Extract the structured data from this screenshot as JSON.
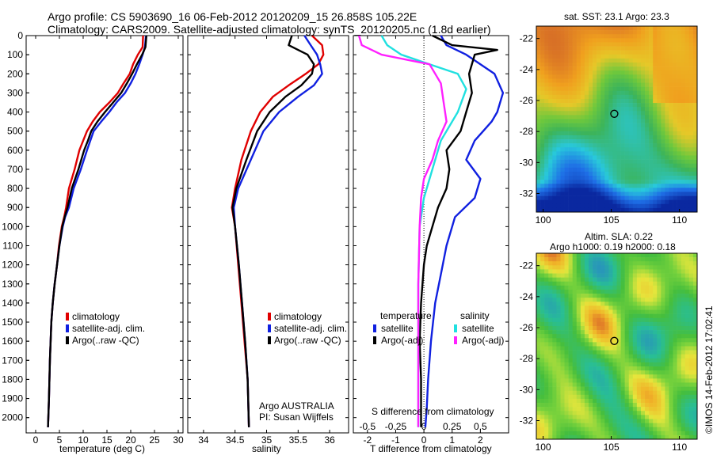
{
  "title": {
    "line1": "Argo profile: CS 5903690_16 06-Feb-2012 20120209_15 26.858S 105.22E",
    "line2": "Climatology: CARS2009. Satellite-adjusted climatology: synTS_20120205.nc (1.8d earlier)"
  },
  "colors": {
    "climatology": "#e00000",
    "satellite": "#1020e0",
    "argo": "#000000",
    "salinity_satellite": "#20e0e0",
    "salinity_argo": "#ff20ff"
  },
  "chart_data": [
    {
      "type": "line",
      "xlabel": "temperature (deg C)",
      "ylabel": "",
      "xlim": [
        -2,
        31
      ],
      "ylim": [
        2080,
        0
      ],
      "xticks": [
        "0",
        "5",
        "10",
        "15",
        "20",
        "25",
        "30"
      ],
      "yticks": [
        "0",
        "100",
        "200",
        "300",
        "400",
        "500",
        "600",
        "700",
        "800",
        "900",
        "1000",
        "1100",
        "1200",
        "1300",
        "1400",
        "1500",
        "1600",
        "1700",
        "1800",
        "1900",
        "2000"
      ],
      "legend": [
        "climatology",
        "satellite-adj. clim.",
        "Argo(..raw -QC)"
      ],
      "series": [
        {
          "name": "climatology",
          "x": [
            22.6,
            22.5,
            21.5,
            20.5,
            19.8,
            18.5,
            17.3,
            15.5,
            13.5,
            12.0,
            10.8,
            10.0,
            9.2,
            8.2,
            7.0,
            6.4,
            6.0,
            5.5,
            4.9,
            4.5,
            4.0,
            3.6,
            3.3,
            3.0,
            2.8,
            2.6
          ],
          "y": [
            0,
            60,
            100,
            150,
            200,
            250,
            300,
            350,
            400,
            450,
            500,
            550,
            600,
            700,
            800,
            900,
            950,
            1000,
            1100,
            1200,
            1300,
            1400,
            1500,
            1700,
            1900,
            2050
          ]
        },
        {
          "name": "satellite-adj. clim.",
          "x": [
            23.2,
            23.0,
            22.5,
            21.8,
            21.0,
            20.0,
            18.8,
            17.0,
            15.5,
            13.8,
            12.2,
            11.5,
            10.8,
            9.5,
            8.0,
            7.0,
            6.2,
            5.7,
            5.0,
            4.5,
            4.0,
            3.6,
            3.3,
            3.0,
            2.8,
            2.6
          ],
          "y": [
            0,
            60,
            100,
            150,
            200,
            250,
            300,
            350,
            400,
            450,
            500,
            550,
            600,
            700,
            800,
            900,
            950,
            1000,
            1100,
            1200,
            1300,
            1400,
            1500,
            1700,
            1900,
            2050
          ]
        },
        {
          "name": "Argo(..raw -QC)",
          "x": [
            23.3,
            23.1,
            22.4,
            21.3,
            20.3,
            19.2,
            18.0,
            16.3,
            14.6,
            13.0,
            11.7,
            11.0,
            10.2,
            9.0,
            7.6,
            6.7,
            6.1,
            5.6,
            5.0,
            4.5,
            4.0,
            3.6,
            3.3,
            3.0,
            2.8,
            2.6
          ],
          "y": [
            0,
            60,
            100,
            150,
            200,
            250,
            300,
            350,
            400,
            450,
            500,
            550,
            600,
            700,
            800,
            900,
            950,
            1000,
            1100,
            1200,
            1300,
            1400,
            1500,
            1700,
            1900,
            2050
          ]
        }
      ]
    },
    {
      "type": "line",
      "xlabel": "salinity",
      "ylabel": "",
      "xlim": [
        33.75,
        36.3
      ],
      "ylim": [
        2080,
        0
      ],
      "xticks": [
        "34",
        "34.5",
        "35",
        "35.5",
        "36"
      ],
      "legend": [
        "climatology",
        "satellite-adj. clim.",
        "Argo(..raw -QC)"
      ],
      "series": [
        {
          "name": "climatology",
          "x": [
            35.72,
            35.88,
            35.9,
            35.82,
            35.62,
            35.35,
            35.1,
            34.9,
            34.75,
            34.6,
            34.5,
            34.45,
            34.5,
            34.55,
            34.6,
            34.65,
            34.7,
            34.72
          ],
          "y": [
            0,
            50,
            100,
            150,
            200,
            260,
            320,
            400,
            500,
            650,
            800,
            900,
            1000,
            1200,
            1400,
            1600,
            1800,
            2050
          ]
        },
        {
          "name": "satellite-adj. clim.",
          "x": [
            35.6,
            35.7,
            35.8,
            35.85,
            35.88,
            35.75,
            35.5,
            35.2,
            34.95,
            34.75,
            34.55,
            34.48,
            34.5,
            34.56,
            34.61,
            34.66,
            34.7,
            34.72
          ],
          "y": [
            0,
            50,
            100,
            150,
            200,
            260,
            320,
            400,
            500,
            650,
            800,
            900,
            1000,
            1200,
            1400,
            1600,
            1800,
            2050
          ]
        },
        {
          "name": "Argo(..raw -QC)",
          "x": [
            35.4,
            35.35,
            35.65,
            35.75,
            35.72,
            35.55,
            35.3,
            35.05,
            34.85,
            34.68,
            34.52,
            34.46,
            34.5,
            34.56,
            34.61,
            34.66,
            34.7,
            34.72
          ],
          "y": [
            0,
            50,
            100,
            150,
            200,
            260,
            320,
            400,
            500,
            650,
            800,
            900,
            1000,
            1200,
            1400,
            1600,
            1800,
            2050
          ]
        }
      ]
    },
    {
      "type": "line",
      "xlabel": "T difference from climatology",
      "xlabel_top": "S difference from climatology",
      "xlim": [
        -2.5,
        3.0
      ],
      "ylim": [
        2080,
        0
      ],
      "xticks": [
        "-2",
        "-1",
        "0",
        "1",
        "2"
      ],
      "sticks": [
        "-0.5",
        "-0.25",
        "0",
        "0.25",
        "0.5"
      ],
      "legend_headers": [
        "temperature",
        "salinity"
      ],
      "legend": [
        "satellite",
        "Argo(-adj)",
        "satellite",
        "Argo(-adj)"
      ],
      "series": [
        {
          "name": "temperature satellite",
          "x": [
            0.6,
            0.8,
            1.5,
            2.5,
            2.8,
            2.6,
            2.4,
            2.1,
            1.8,
            1.5,
            2.0,
            1.8,
            1.1,
            0.8,
            0.6,
            0.4,
            0.25,
            0.15,
            0.1,
            0.05
          ],
          "y": [
            0,
            50,
            100,
            200,
            300,
            400,
            450,
            500,
            550,
            650,
            750,
            850,
            950,
            1100,
            1250,
            1400,
            1600,
            1800,
            1950,
            2050
          ]
        },
        {
          "name": "temperature Argo(-adj)",
          "x": [
            0.3,
            1.0,
            2.6,
            1.8,
            1.6,
            1.7,
            1.5,
            1.3,
            0.8,
            0.9,
            0.8,
            0.5,
            0.3,
            0.1,
            0.0,
            -0.1,
            -0.15,
            -0.1,
            -0.1,
            -0.1
          ],
          "y": [
            0,
            50,
            75,
            100,
            200,
            300,
            400,
            500,
            600,
            700,
            800,
            900,
            1000,
            1100,
            1200,
            1400,
            1600,
            1800,
            1950,
            2050
          ]
        },
        {
          "name": "salinity satellite",
          "x": [
            -1.5,
            -1.3,
            -0.8,
            0.2,
            1.2,
            1.5,
            1.2,
            0.6,
            0.3,
            0.0,
            -0.15,
            -0.2,
            -0.2,
            -0.2,
            -0.2
          ],
          "y": [
            0,
            50,
            100,
            150,
            200,
            280,
            400,
            550,
            700,
            850,
            1000,
            1300,
            1600,
            1900,
            2050
          ]
        },
        {
          "name": "salinity Argo(-adj)",
          "x": [
            -2.3,
            -2.2,
            -1.5,
            0.2,
            0.6,
            0.7,
            0.8,
            0.5,
            0.3,
            0.0,
            -0.1,
            -0.15,
            -0.2,
            -0.2,
            -0.2
          ],
          "y": [
            0,
            50,
            100,
            150,
            250,
            350,
            450,
            550,
            650,
            750,
            850,
            1000,
            1300,
            1600,
            2050
          ]
        }
      ]
    },
    {
      "type": "heatmap",
      "title": "sat. SST: 23.1  Argo: 23.3",
      "xticks": [
        "100",
        "105",
        "110"
      ],
      "yticks": [
        "-22",
        "-24",
        "-26",
        "-28",
        "-30",
        "-32"
      ],
      "xlim": [
        99.5,
        111.3
      ],
      "ylim": [
        -33.2,
        -21.2
      ],
      "marker": {
        "lon": 105.22,
        "lat": -26.858
      }
    },
    {
      "type": "heatmap",
      "title": "Altim. SLA: 0.22",
      "subtitle": "Argo h1000: 0.19 h2000: 0.18",
      "xticks": [
        "100",
        "105",
        "110"
      ],
      "yticks": [
        "-22",
        "-24",
        "-26",
        "-28",
        "-30",
        "-32"
      ],
      "xlim": [
        99.5,
        111.3
      ],
      "ylim": [
        -33.2,
        -21.2
      ],
      "marker": {
        "lon": 105.22,
        "lat": -26.858
      }
    }
  ],
  "panel1": {
    "legend": [
      "climatology",
      "satellite-adj. clim.",
      "Argo(..raw -QC)"
    ]
  },
  "panel2": {
    "legend": [
      "climatology",
      "satellite-adj. clim.",
      "Argo(..raw -QC)"
    ],
    "note1": "Argo AUSTRALIA",
    "note2": "PI: Susan Wijffels"
  },
  "panel3": {
    "legend_temp": "temperature",
    "legend_sal": "salinity",
    "legend_items": [
      "satellite",
      "Argo(-adj)",
      "satellite",
      "Argo(-adj)"
    ]
  },
  "credit": "©IMOS 14-Feb-2012 17:02:41"
}
